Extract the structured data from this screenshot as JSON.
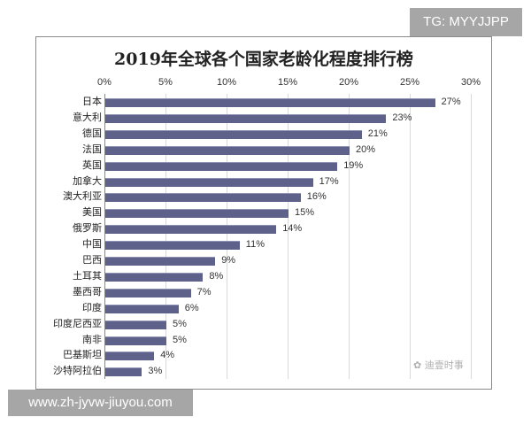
{
  "watermarks": {
    "top": "TG: MYYJJPP",
    "bottom": "www.zh-jyvw-jiuyou.com"
  },
  "source_logo": "迪壹时事",
  "chart_data": {
    "type": "bar",
    "orientation": "horizontal",
    "title": "2019年全球各个国家老龄化程度排行榜",
    "xlabel": "",
    "ylabel": "",
    "xlim": [
      0,
      30
    ],
    "x_ticks": [
      "0%",
      "5%",
      "10%",
      "15%",
      "20%",
      "25%",
      "30%"
    ],
    "x_axis_position": "top",
    "grid": true,
    "legend": "none",
    "bar_color": "#5e6189",
    "categories": [
      "日本",
      "意大利",
      "德国",
      "法国",
      "英国",
      "加拿大",
      "澳大利亚",
      "美国",
      "俄罗斯",
      "中国",
      "巴西",
      "土耳其",
      "墨西哥",
      "印度",
      "印度尼西亚",
      "南非",
      "巴基斯坦",
      "沙特阿拉伯"
    ],
    "values": [
      27,
      23,
      21,
      20,
      19,
      17,
      16,
      15,
      14,
      11,
      9,
      8,
      7,
      6,
      5,
      5,
      4,
      3
    ],
    "value_labels": [
      "27%",
      "23%",
      "21%",
      "20%",
      "19%",
      "17%",
      "16%",
      "15%",
      "14%",
      "11%",
      "9%",
      "8%",
      "7%",
      "6%",
      "5%",
      "5%",
      "4%",
      "3%"
    ]
  }
}
